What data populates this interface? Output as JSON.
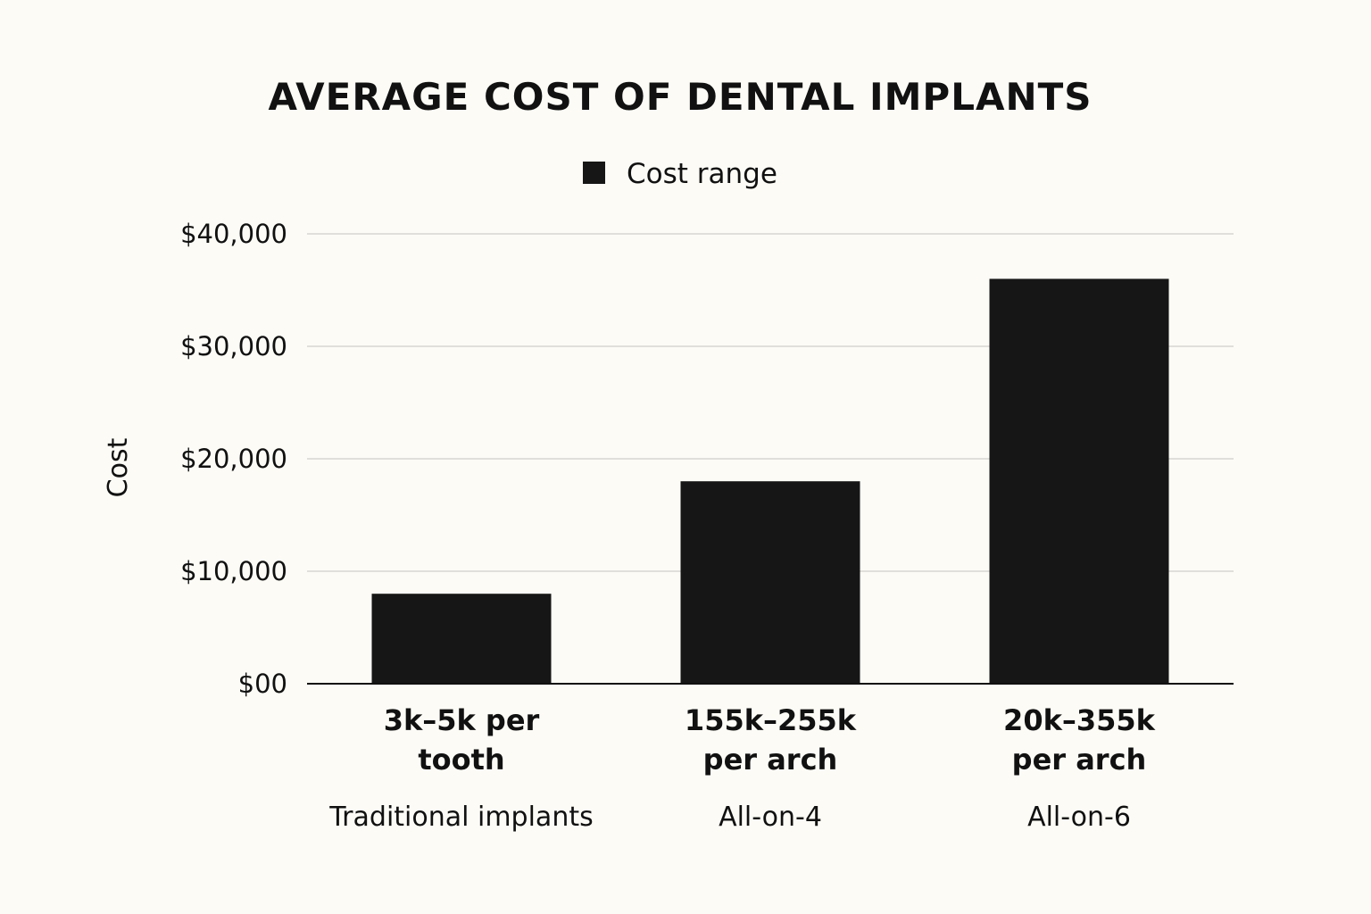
{
  "chart_data": {
    "type": "bar",
    "title": "AVERAGE COST OF DENTAL IMPLANTS",
    "xlabel": "",
    "ylabel": "Cost",
    "ylim": [
      0,
      40000
    ],
    "yticks": [
      0,
      10000,
      20000,
      30000,
      40000
    ],
    "ytick_labels": [
      "$00",
      "$10,000",
      "$20,000",
      "$30,000",
      "$40,000"
    ],
    "grid": true,
    "legend_position": "top-center",
    "categories": [
      "Traditional implants",
      "All-on-4",
      "All-on-6"
    ],
    "series": [
      {
        "name": "Cost range",
        "color": "#161616",
        "values": [
          8000,
          18000,
          36000
        ],
        "labels": [
          [
            "3k–5k per",
            "tooth"
          ],
          [
            "155k–255k",
            "per arch"
          ],
          [
            "20k–355k",
            "per arch"
          ]
        ]
      }
    ]
  }
}
